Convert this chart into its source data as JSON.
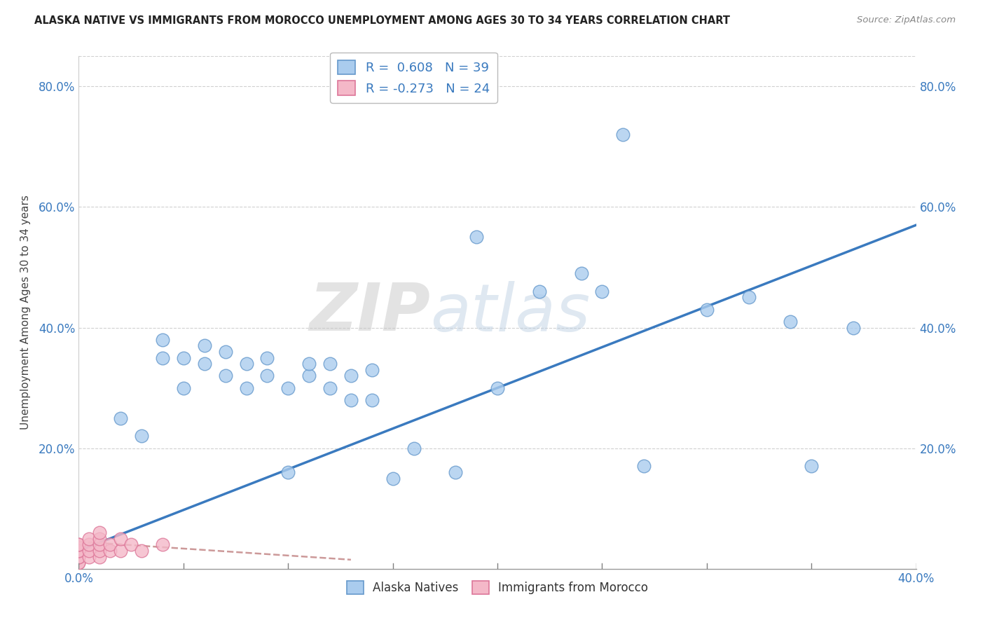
{
  "title": "ALASKA NATIVE VS IMMIGRANTS FROM MOROCCO UNEMPLOYMENT AMONG AGES 30 TO 34 YEARS CORRELATION CHART",
  "source": "Source: ZipAtlas.com",
  "ylabel": "Unemployment Among Ages 30 to 34 years",
  "xlim": [
    0.0,
    0.4
  ],
  "ylim": [
    0.0,
    0.85
  ],
  "xtick_positions": [
    0.0,
    0.05,
    0.1,
    0.15,
    0.2,
    0.25,
    0.3,
    0.35,
    0.4
  ],
  "ytick_positions": [
    0.0,
    0.2,
    0.4,
    0.6,
    0.8
  ],
  "alaska_color": "#aaccee",
  "alaska_edge": "#6699cc",
  "morocco_color": "#f4b8c8",
  "morocco_edge": "#dd7799",
  "trendline_alaska_color": "#3a7abf",
  "trendline_morocco_color": "#cc9999",
  "legend_r_alaska": "R =  0.608",
  "legend_n_alaska": "N = 39",
  "legend_r_morocco": "R = -0.273",
  "legend_n_morocco": "N = 24",
  "watermark_zip": "ZIP",
  "watermark_atlas": "atlas",
  "alaska_x": [
    0.02,
    0.03,
    0.04,
    0.04,
    0.05,
    0.05,
    0.06,
    0.06,
    0.07,
    0.07,
    0.08,
    0.08,
    0.09,
    0.09,
    0.1,
    0.1,
    0.11,
    0.11,
    0.12,
    0.12,
    0.13,
    0.13,
    0.14,
    0.14,
    0.15,
    0.16,
    0.18,
    0.19,
    0.2,
    0.22,
    0.24,
    0.25,
    0.26,
    0.27,
    0.3,
    0.32,
    0.34,
    0.35,
    0.37
  ],
  "alaska_y": [
    0.25,
    0.22,
    0.35,
    0.38,
    0.3,
    0.35,
    0.34,
    0.37,
    0.32,
    0.36,
    0.3,
    0.34,
    0.32,
    0.35,
    0.16,
    0.3,
    0.32,
    0.34,
    0.3,
    0.34,
    0.28,
    0.32,
    0.28,
    0.33,
    0.15,
    0.2,
    0.16,
    0.55,
    0.3,
    0.46,
    0.49,
    0.46,
    0.72,
    0.17,
    0.43,
    0.45,
    0.41,
    0.17,
    0.4
  ],
  "morocco_x": [
    0.0,
    0.0,
    0.0,
    0.0,
    0.0,
    0.0,
    0.0,
    0.0,
    0.005,
    0.005,
    0.005,
    0.005,
    0.01,
    0.01,
    0.01,
    0.01,
    0.01,
    0.015,
    0.015,
    0.02,
    0.02,
    0.025,
    0.03,
    0.04
  ],
  "morocco_y": [
    0.01,
    0.01,
    0.02,
    0.02,
    0.03,
    0.03,
    0.04,
    0.04,
    0.02,
    0.03,
    0.04,
    0.05,
    0.02,
    0.03,
    0.04,
    0.05,
    0.06,
    0.03,
    0.04,
    0.03,
    0.05,
    0.04,
    0.03,
    0.04
  ]
}
